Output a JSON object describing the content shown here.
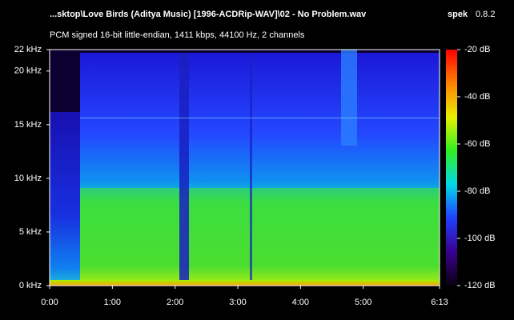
{
  "chart_data": {
    "type": "spectrogram",
    "title": "...sktop\\Love Birds (Aditya Music) [1996-ACDRip-WAV]\\02 - No Problem.wav",
    "app_name": "spek",
    "app_version": "0.8.2",
    "subtitle": "PCM signed 16-bit little-endian, 1411 kbps, 44100 Hz, 2 channels",
    "xlim": [
      0,
      373
    ],
    "xticks": [
      {
        "value": 0,
        "label": "0:00"
      },
      {
        "value": 60,
        "label": "1:00"
      },
      {
        "value": 120,
        "label": "2:00"
      },
      {
        "value": 180,
        "label": "3:00"
      },
      {
        "value": 240,
        "label": "4:00"
      },
      {
        "value": 300,
        "label": "5:00"
      },
      {
        "value": 373,
        "label": "6:13"
      }
    ],
    "ylim": [
      0,
      22
    ],
    "yticks": [
      {
        "value": 0,
        "label": "0 kHz"
      },
      {
        "value": 5,
        "label": "5 kHz"
      },
      {
        "value": 10,
        "label": "10 kHz"
      },
      {
        "value": 15,
        "label": "15 kHz"
      },
      {
        "value": 20,
        "label": "20 kHz"
      },
      {
        "value": 22,
        "label": "22 kHz"
      }
    ],
    "colorbar": {
      "lim": [
        -120,
        -20
      ],
      "ticks": [
        {
          "value": -20,
          "label": "-20 dB"
        },
        {
          "value": -40,
          "label": "-40 dB"
        },
        {
          "value": -60,
          "label": "-60 dB"
        },
        {
          "value": -80,
          "label": "-80 dB"
        },
        {
          "value": -100,
          "label": "-100 dB"
        },
        {
          "value": -120,
          "label": "-120 dB"
        }
      ],
      "colors": [
        "#0a0010",
        "#3a0090",
        "#2040ff",
        "#00d8e8",
        "#30f020",
        "#e8f000",
        "#ff8000",
        "#ff0000"
      ]
    }
  }
}
